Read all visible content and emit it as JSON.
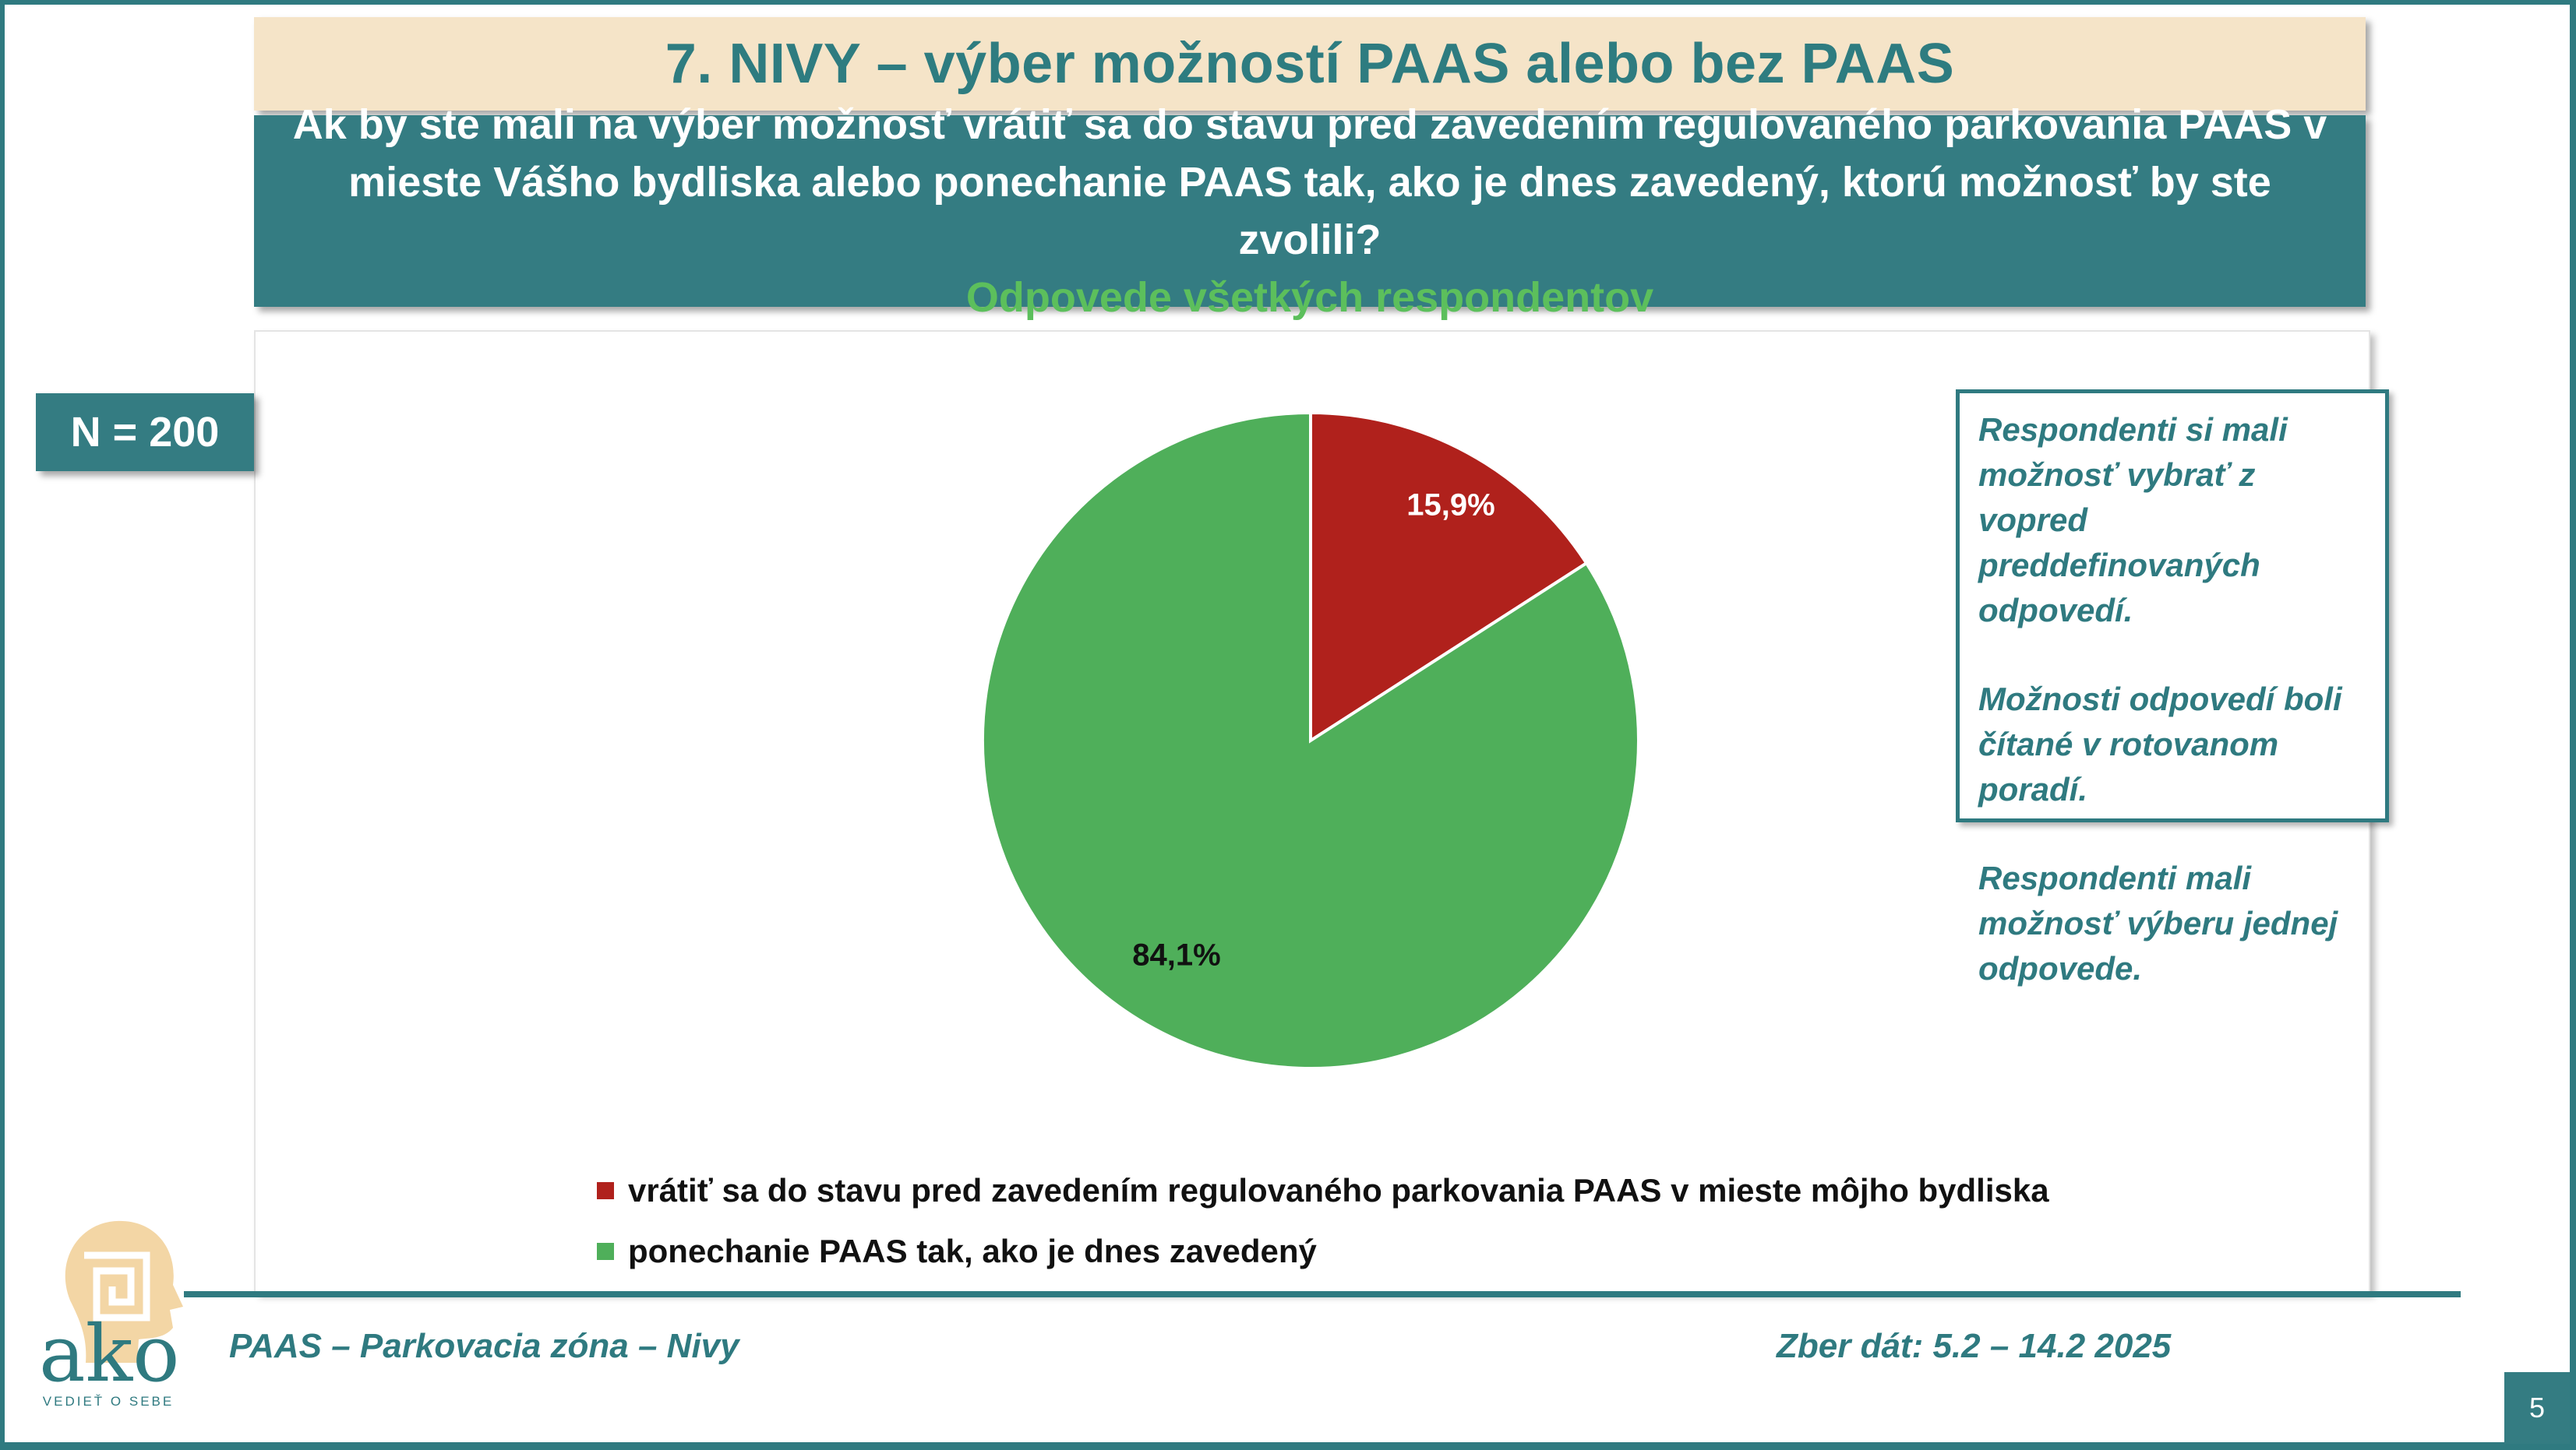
{
  "header": {
    "title": "7. NIVY – výber možností PAAS alebo bez PAAS"
  },
  "question": {
    "text": "Ak by ste mali na výber možnosť vrátiť sa do stavu pred zavedením regulovaného parkovania PAAS  v mieste Vášho bydliska alebo ponechanie PAAS tak, ako je dnes zavedený, ktorú možnosť by ste zvolili?",
    "subtitle": "Odpovede všetkých respondentov"
  },
  "sample": {
    "label": "N = 200"
  },
  "note": {
    "paragraphs": [
      "Respondenti si mali možnosť vybrať z vopred preddefinovaných odpovedí.",
      "Možnosti odpovedí boli čítané v rotovanom poradí.",
      "Respondenti mali možnosť výberu jednej odpovede."
    ]
  },
  "chart_data": {
    "type": "pie",
    "categories": [
      "vrátiť sa do stavu pred zavedením regulovaného parkovania PAAS v mieste môjho bydliska",
      "ponechanie PAAS tak, ako je dnes zavedený"
    ],
    "values": [
      15.9,
      84.1
    ],
    "data_labels": [
      "15,9%",
      "84,1%"
    ],
    "colors": [
      "#b0211c",
      "#4faf5a"
    ],
    "start_angle_deg": 0,
    "direction": "clockwise",
    "legend_position": "bottom"
  },
  "footer": {
    "left": "PAAS – Parkovacia zóna – Nivy",
    "right": "Zber dát: 5.2 – 14.2 2025",
    "page_number": "5"
  },
  "logo": {
    "word": "ako",
    "tagline": "VEDIEŤ O SEBE",
    "color": "#e8b765"
  },
  "colors": {
    "accent": "#2f7a80",
    "title_bg": "#f5e4c8",
    "question_bg": "#347c82",
    "subtitle": "#5cbf5c"
  }
}
